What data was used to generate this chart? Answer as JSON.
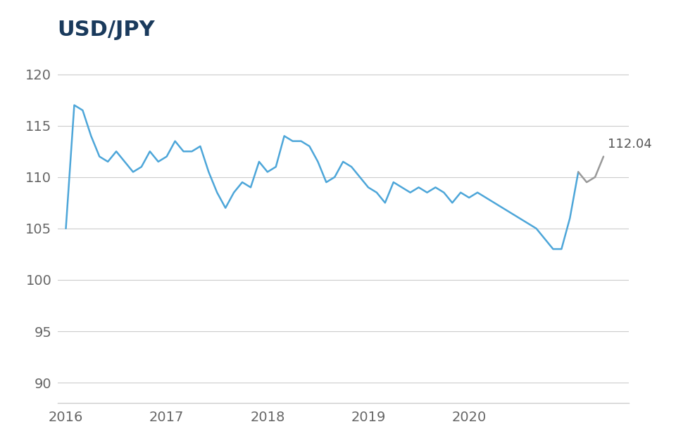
{
  "title": "USD/JPY",
  "title_color": "#1a3a5c",
  "title_fontsize": 22,
  "line_color": "#4da6d9",
  "line_color_gray": "#999999",
  "last_value_label": "112.04",
  "last_value_color": "#555555",
  "background_color": "#ffffff",
  "grid_color": "#cccccc",
  "tick_label_color": "#666666",
  "ylim": [
    88,
    122
  ],
  "yticks": [
    90,
    95,
    100,
    105,
    110,
    115,
    120
  ],
  "xtick_labels": [
    "2016",
    "2017",
    "2018",
    "2019",
    "2020"
  ],
  "year_positions": [
    0,
    12,
    24,
    36,
    48
  ],
  "x_values": [
    0,
    1,
    2,
    3,
    4,
    5,
    6,
    7,
    8,
    9,
    10,
    11,
    12,
    13,
    14,
    15,
    16,
    17,
    18,
    19,
    20,
    21,
    22,
    23,
    24,
    25,
    26,
    27,
    28,
    29,
    30,
    31,
    32,
    33,
    34,
    35,
    36,
    37,
    38,
    39,
    40,
    41,
    42,
    43,
    44,
    45,
    46,
    47,
    48,
    49,
    50,
    51,
    52,
    53,
    54,
    55,
    56,
    57,
    58,
    59,
    60,
    61,
    62,
    63,
    64
  ],
  "y_values": [
    105.0,
    117.0,
    116.5,
    114.0,
    112.0,
    111.5,
    112.5,
    111.5,
    110.5,
    111.0,
    112.5,
    111.5,
    112.0,
    113.5,
    112.5,
    112.5,
    113.0,
    110.5,
    108.5,
    107.0,
    108.5,
    109.5,
    109.0,
    111.5,
    110.5,
    111.0,
    114.0,
    113.5,
    113.5,
    113.0,
    111.5,
    109.5,
    110.0,
    111.5,
    111.0,
    110.0,
    109.0,
    108.5,
    107.5,
    109.5,
    109.0,
    108.5,
    109.0,
    108.5,
    109.0,
    108.5,
    107.5,
    108.5,
    108.0,
    108.5,
    108.0,
    107.5,
    107.0,
    106.5,
    106.0,
    105.5,
    105.0,
    104.0,
    103.0,
    103.0,
    106.0,
    110.5,
    109.5,
    110.0,
    112.0
  ],
  "split_idx": 61,
  "xlim_min": -1,
  "xlim_max": 67,
  "linewidth": 1.8
}
